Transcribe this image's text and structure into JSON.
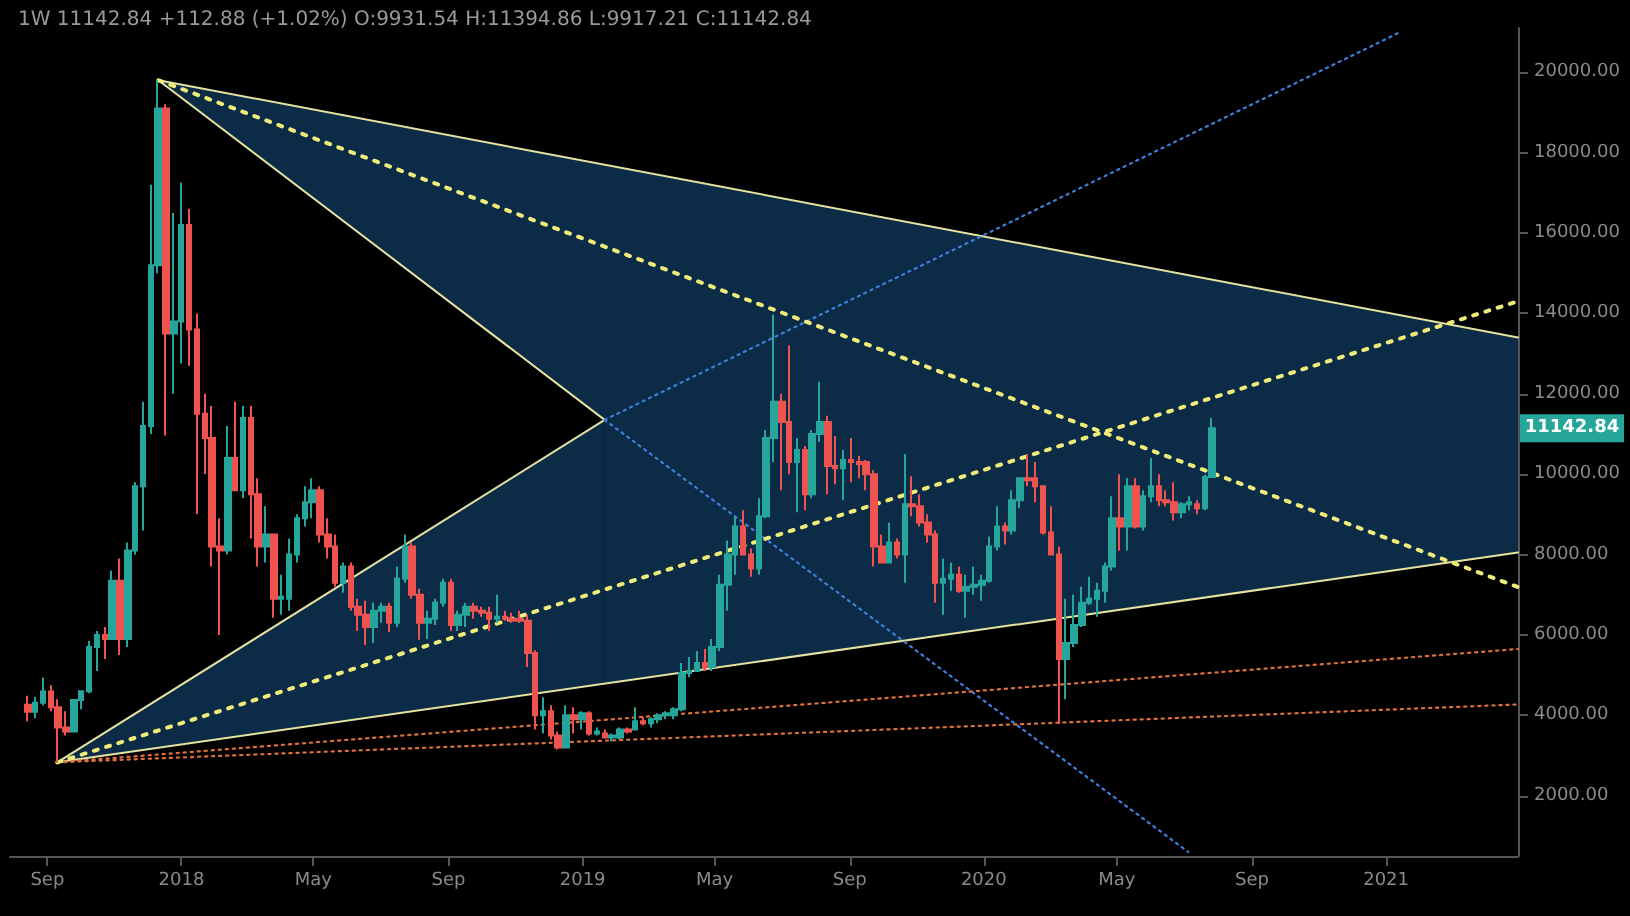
{
  "chart_data": {
    "type": "candlestick",
    "title": "1W 11142.84 +112.88 (+1.02%) O:9931.54 H:11394.86 L:9917.21 C:11142.84",
    "colors": [
      "#ef5350",
      "#26a69a",
      "#26a69a",
      "#ef5350",
      "#ef5350",
      "#ef5350",
      "#26a69a",
      "#26a69a",
      "#26a69a",
      "#26a69a",
      "#ef5350",
      "#26a69a",
      "#ef5350",
      "#26a69a",
      "#26a69a",
      "#26a69a",
      "#26a69a",
      "#26a69a",
      "#ef5350",
      "#26a69a",
      "#26a69a",
      "#ef5350",
      "#ef5350",
      "#ef5350",
      "#ef5350",
      "#ef5350",
      "#26a69a",
      "#ef5350",
      "#26a69a",
      "#ef5350",
      "#ef5350",
      "#26a69a",
      "#ef5350",
      "#26a69a",
      "#26a69a",
      "#26a69a",
      "#26a69a",
      "#26a69a",
      "#ef5350",
      "#ef5350",
      "#ef5350",
      "#26a69a",
      "#ef5350",
      "#ef5350",
      "#ef5350",
      "#26a69a",
      "#26a69a",
      "#ef5350",
      "#26a69a",
      "#26a69a",
      "#ef5350",
      "#ef5350",
      "#26a69a",
      "#26a69a",
      "#26a69a",
      "#ef5350",
      "#26a69a",
      "#26a69a",
      "#ef5350",
      "#ef5350",
      "#ef5350",
      "#26a69a",
      "#ef5350",
      "#ef5350",
      "#ef5350",
      "#ef5350",
      "#ef5350",
      "#26a69a",
      "#ef5350",
      "#ef5350",
      "#26a69a",
      "#ef5350",
      "#26a69a",
      "#ef5350",
      "#26a69a",
      "#ef5350",
      "#26a69a",
      "#26a69a",
      "#ef5350",
      "#26a69a",
      "#ef5350",
      "#26a69a",
      "#26a69a",
      "#26a69a",
      "#26a69a",
      "#26a69a",
      "#26a69a",
      "#26a69a",
      "#ef5350",
      "#26a69a",
      "#26a69a",
      "#26a69a",
      "#26a69a",
      "#ef5350",
      "#ef5350",
      "#26a69a",
      "#26a69a",
      "#26a69a",
      "#ef5350",
      "#ef5350",
      "#26a69a",
      "#ef5350",
      "#26a69a",
      "#26a69a",
      "#ef5350",
      "#ef5350",
      "#26a69a",
      "#ef5350",
      "#ef5350",
      "#ef5350",
      "#ef5350",
      "#ef5350",
      "#26a69a",
      "#ef5350",
      "#26a69a",
      "#ef5350",
      "#ef5350",
      "#ef5350",
      "#ef5350",
      "#26a69a",
      "#26a69a",
      "#ef5350",
      "#26a69a",
      "#26a69a",
      "#26a69a",
      "#26a69a",
      "#26a69a",
      "#ef5350",
      "#26a69a",
      "#26a69a",
      "#ef5350",
      "#ef5350",
      "#ef5350",
      "#ef5350",
      "#ef5350",
      "#26a69a",
      "#26a69a",
      "#26a69a",
      "#26a69a",
      "#26a69a",
      "#26a69a",
      "#26a69a",
      "#ef5350",
      "#26a69a",
      "#ef5350",
      "#26a69a",
      "#26a69a",
      "#ef5350",
      "#ef5350",
      "#ef5350",
      "#26a69a",
      "#26a69a",
      "#ef5350",
      "#26a69a",
      "#26a69a"
    ],
    "grid": false,
    "xlim": [
      "2017-07-29",
      "2021-05-01"
    ],
    "xticks": [
      {
        "value": "2017-09-01",
        "label": "Sep"
      },
      {
        "value": "2018-01-01",
        "label": "2018"
      },
      {
        "value": "2018-05-01",
        "label": "May"
      },
      {
        "value": "2018-09-01",
        "label": "Sep"
      },
      {
        "value": "2019-01-01",
        "label": "2019"
      },
      {
        "value": "2019-05-01",
        "label": "May"
      },
      {
        "value": "2019-09-01",
        "label": "Sep"
      },
      {
        "value": "2020-01-01",
        "label": "2020"
      },
      {
        "value": "2020-05-01",
        "label": "May"
      },
      {
        "value": "2020-09-01",
        "label": "Sep"
      },
      {
        "value": "2021-01-01",
        "label": "2021"
      }
    ],
    "ylim": [
      500,
      21100
    ],
    "yticks": [
      {
        "value": 2000,
        "label": "2000.00"
      },
      {
        "value": 4000,
        "label": "4000.00"
      },
      {
        "value": 6000,
        "label": "6000.00"
      },
      {
        "value": 8000,
        "label": "8000.00"
      },
      {
        "value": 10000,
        "label": "10000.00"
      },
      {
        "value": 12000,
        "label": "12000.00"
      },
      {
        "value": 14000,
        "label": "14000.00"
      },
      {
        "value": 16000,
        "label": "16000.00"
      },
      {
        "value": 18000,
        "label": "18000.00"
      },
      {
        "value": 20000,
        "label": "20000.00"
      }
    ],
    "annotations": [
      "11142.84"
    ],
    "x": [
      "2017-08-14",
      "2017-08-21",
      "2017-08-28",
      "2017-09-04",
      "2017-09-11",
      "2017-09-18",
      "2017-09-25",
      "2017-10-02",
      "2017-10-09",
      "2017-10-16",
      "2017-10-23",
      "2017-10-30",
      "2017-11-06",
      "2017-11-13",
      "2017-11-20",
      "2017-11-27",
      "2017-12-04",
      "2017-12-11",
      "2017-12-18",
      "2017-12-25",
      "2018-01-01",
      "2018-01-08",
      "2018-01-15",
      "2018-01-22",
      "2018-01-29",
      "2018-02-05",
      "2018-02-12",
      "2018-02-19",
      "2018-02-26",
      "2018-03-05",
      "2018-03-12",
      "2018-03-19",
      "2018-03-26",
      "2018-04-02",
      "2018-04-09",
      "2018-04-16",
      "2018-04-23",
      "2018-04-30",
      "2018-05-07",
      "2018-05-14",
      "2018-05-21",
      "2018-05-28",
      "2018-06-04",
      "2018-06-11",
      "2018-06-18",
      "2018-06-25",
      "2018-07-02",
      "2018-07-09",
      "2018-07-16",
      "2018-07-23",
      "2018-07-30",
      "2018-08-06",
      "2018-08-13",
      "2018-08-20",
      "2018-08-27",
      "2018-09-03",
      "2018-09-10",
      "2018-09-17",
      "2018-09-24",
      "2018-10-01",
      "2018-10-08",
      "2018-10-15",
      "2018-10-22",
      "2018-10-29",
      "2018-11-05",
      "2018-11-12",
      "2018-11-19",
      "2018-11-26",
      "2018-12-03",
      "2018-12-10",
      "2018-12-17",
      "2018-12-24",
      "2018-12-31",
      "2019-01-07",
      "2019-01-14",
      "2019-01-21",
      "2019-01-28",
      "2019-02-04",
      "2019-02-11",
      "2019-02-18",
      "2019-02-25",
      "2019-03-04",
      "2019-03-11",
      "2019-03-18",
      "2019-03-25",
      "2019-04-01",
      "2019-04-08",
      "2019-04-15",
      "2019-04-22",
      "2019-04-29",
      "2019-05-06",
      "2019-05-13",
      "2019-05-20",
      "2019-05-27",
      "2019-06-03",
      "2019-06-10",
      "2019-06-17",
      "2019-06-24",
      "2019-07-01",
      "2019-07-08",
      "2019-07-15",
      "2019-07-22",
      "2019-07-29",
      "2019-08-05",
      "2019-08-12",
      "2019-08-19",
      "2019-08-26",
      "2019-09-02",
      "2019-09-09",
      "2019-09-16",
      "2019-09-23",
      "2019-09-30",
      "2019-10-07",
      "2019-10-14",
      "2019-10-21",
      "2019-10-28",
      "2019-11-04",
      "2019-11-11",
      "2019-11-18",
      "2019-11-25",
      "2019-12-02",
      "2019-12-09",
      "2019-12-16",
      "2019-12-23",
      "2019-12-30",
      "2020-01-06",
      "2020-01-13",
      "2020-01-20",
      "2020-01-27",
      "2020-02-03",
      "2020-02-10",
      "2020-02-17",
      "2020-02-24",
      "2020-03-02",
      "2020-03-09",
      "2020-03-16",
      "2020-03-23",
      "2020-03-30",
      "2020-04-06",
      "2020-04-13",
      "2020-04-20",
      "2020-04-27",
      "2020-05-04",
      "2020-05-11",
      "2020-05-18",
      "2020-05-25",
      "2020-06-01",
      "2020-06-08",
      "2020-06-15",
      "2020-06-22",
      "2020-06-29",
      "2020-07-06",
      "2020-07-13",
      "2020-07-20",
      "2020-07-27"
    ],
    "ohlc": [
      [
        4261,
        4485,
        3850,
        4086
      ],
      [
        4086,
        4453,
        3930,
        4310
      ],
      [
        4310,
        4939,
        4250,
        4590
      ],
      [
        4590,
        4750,
        4100,
        4200
      ],
      [
        4200,
        4400,
        2817,
        3700
      ],
      [
        3700,
        4100,
        3500,
        3600
      ],
      [
        3600,
        4400,
        3600,
        4380
      ],
      [
        4380,
        4600,
        4150,
        4600
      ],
      [
        4600,
        5850,
        4550,
        5700
      ],
      [
        5700,
        6100,
        5100,
        6000
      ],
      [
        6000,
        6200,
        5400,
        5900
      ],
      [
        5900,
        7600,
        5900,
        7350
      ],
      [
        7350,
        7900,
        5500,
        5900
      ],
      [
        5900,
        8300,
        5700,
        8100
      ],
      [
        8100,
        9800,
        8000,
        9700
      ],
      [
        9700,
        11800,
        8600,
        11200
      ],
      [
        11200,
        17200,
        11000,
        15200
      ],
      [
        15200,
        19798,
        15000,
        19100
      ],
      [
        19100,
        19200,
        10960,
        13500
      ],
      [
        13500,
        16500,
        12000,
        13800
      ],
      [
        13800,
        17250,
        12750,
        16200
      ],
      [
        16200,
        16600,
        12700,
        13600
      ],
      [
        13600,
        14000,
        9000,
        11500
      ],
      [
        11500,
        12000,
        10000,
        10900
      ],
      [
        10900,
        11700,
        7700,
        8200
      ],
      [
        8200,
        8900,
        6000,
        8100
      ],
      [
        8100,
        11200,
        8000,
        10400
      ],
      [
        10400,
        11800,
        9600,
        9600
      ],
      [
        9600,
        11700,
        9400,
        11400
      ],
      [
        11400,
        11700,
        8400,
        9500
      ],
      [
        9500,
        9900,
        7700,
        8200
      ],
      [
        8200,
        9200,
        7800,
        8500
      ],
      [
        8500,
        8500,
        6430,
        6900
      ],
      [
        6900,
        7500,
        6500,
        6950
      ],
      [
        6900,
        8400,
        6600,
        8000
      ],
      [
        8000,
        9000,
        7800,
        8900
      ],
      [
        8900,
        9700,
        8700,
        9300
      ],
      [
        9300,
        9900,
        8900,
        9600
      ],
      [
        9600,
        9700,
        8300,
        8500
      ],
      [
        8500,
        8900,
        7900,
        8200
      ],
      [
        8200,
        8500,
        7200,
        7300
      ],
      [
        7300,
        7800,
        7050,
        7700
      ],
      [
        7700,
        7800,
        6600,
        6700
      ],
      [
        6700,
        6900,
        6100,
        6500
      ],
      [
        6500,
        6850,
        5750,
        6200
      ],
      [
        6200,
        6800,
        5800,
        6600
      ],
      [
        6600,
        6800,
        6300,
        6700
      ],
      [
        6700,
        6800,
        6070,
        6300
      ],
      [
        6300,
        7700,
        6200,
        7400
      ],
      [
        7400,
        8500,
        7300,
        8200
      ],
      [
        8200,
        8300,
        6900,
        7000
      ],
      [
        7000,
        7150,
        5880,
        6300
      ],
      [
        6300,
        6600,
        5900,
        6400
      ],
      [
        6400,
        6900,
        6250,
        6800
      ],
      [
        6800,
        7400,
        6700,
        7300
      ],
      [
        7300,
        7400,
        6100,
        6250
      ],
      [
        6250,
        6600,
        6100,
        6500
      ],
      [
        6500,
        6800,
        6200,
        6700
      ],
      [
        6700,
        6800,
        6400,
        6600
      ],
      [
        6600,
        6700,
        6450,
        6550
      ],
      [
        6550,
        6700,
        6100,
        6400
      ],
      [
        6400,
        7000,
        6300,
        6450
      ],
      [
        6450,
        6600,
        6350,
        6400
      ],
      [
        6400,
        6550,
        6300,
        6350
      ],
      [
        6400,
        6600,
        6300,
        6350
      ],
      [
        6350,
        6500,
        5200,
        5550
      ],
      [
        5550,
        5620,
        3650,
        4000
      ],
      [
        4000,
        4450,
        3550,
        4100
      ],
      [
        4100,
        4250,
        3400,
        3500
      ],
      [
        3500,
        3600,
        3150,
        3200
      ],
      [
        3200,
        4250,
        3200,
        4000
      ],
      [
        4000,
        4200,
        3550,
        3900
      ],
      [
        3900,
        4100,
        3650,
        4050
      ],
      [
        4050,
        4100,
        3500,
        3550
      ],
      [
        3550,
        3700,
        3500,
        3600
      ],
      [
        3550,
        3650,
        3450,
        3450
      ],
      [
        3450,
        3550,
        3350,
        3500
      ],
      [
        3450,
        3700,
        3400,
        3650
      ],
      [
        3650,
        3700,
        3550,
        3600
      ],
      [
        3650,
        4200,
        3650,
        3850
      ],
      [
        3850,
        3950,
        3750,
        3800
      ],
      [
        3800,
        3950,
        3700,
        3900
      ],
      [
        3900,
        4050,
        3800,
        4000
      ],
      [
        4000,
        4100,
        3900,
        4050
      ],
      [
        4000,
        4200,
        3900,
        4150
      ],
      [
        4150,
        5300,
        4100,
        5050
      ],
      [
        5050,
        5450,
        4950,
        5100
      ],
      [
        5100,
        5600,
        5100,
        5300
      ],
      [
        5300,
        5650,
        5100,
        5200
      ],
      [
        5200,
        5900,
        5100,
        5700
      ],
      [
        5700,
        7500,
        5600,
        7250
      ],
      [
        7250,
        8350,
        6600,
        8000
      ],
      [
        8000,
        8950,
        7500,
        8700
      ],
      [
        8700,
        9100,
        8000,
        8000
      ],
      [
        8000,
        8150,
        7450,
        7650
      ],
      [
        7650,
        9400,
        7500,
        8950
      ],
      [
        8950,
        11100,
        8900,
        10900
      ],
      [
        10900,
        13970,
        10300,
        11800
      ],
      [
        11800,
        12000,
        9600,
        11300
      ],
      [
        11300,
        13200,
        10000,
        10300
      ],
      [
        10300,
        10900,
        9050,
        10600
      ],
      [
        10600,
        10700,
        9100,
        9500
      ],
      [
        9500,
        11100,
        9400,
        11000
      ],
      [
        11000,
        12300,
        10800,
        11300
      ],
      [
        11300,
        11450,
        9500,
        10200
      ],
      [
        10200,
        10950,
        9750,
        10150
      ],
      [
        10150,
        10600,
        9350,
        10350
      ],
      [
        10350,
        10900,
        9800,
        10300
      ],
      [
        10300,
        10450,
        9900,
        10250
      ],
      [
        10300,
        10350,
        9600,
        10000
      ],
      [
        10000,
        10100,
        7700,
        8200
      ],
      [
        8200,
        8500,
        7800,
        7800
      ],
      [
        7800,
        8800,
        7800,
        8300
      ],
      [
        8300,
        8400,
        7900,
        8000
      ],
      [
        8000,
        10500,
        7300,
        9250
      ],
      [
        9250,
        9950,
        8950,
        9200
      ],
      [
        9200,
        9500,
        8700,
        8800
      ],
      [
        8800,
        9000,
        8300,
        8500
      ],
      [
        8500,
        8600,
        6800,
        7300
      ],
      [
        7300,
        7900,
        6500,
        7400
      ],
      [
        7400,
        7800,
        7100,
        7500
      ],
      [
        7500,
        7700,
        7050,
        7100
      ],
      [
        7100,
        7500,
        6430,
        7200
      ],
      [
        7200,
        7700,
        7000,
        7250
      ],
      [
        7250,
        7500,
        6850,
        7350
      ],
      [
        7350,
        8450,
        7300,
        8200
      ],
      [
        8200,
        9200,
        8100,
        8700
      ],
      [
        8700,
        8800,
        8250,
        8600
      ],
      [
        8600,
        9600,
        8500,
        9350
      ],
      [
        9350,
        9900,
        9150,
        9900
      ],
      [
        9900,
        10500,
        9700,
        9850
      ],
      [
        9900,
        10300,
        9300,
        9700
      ],
      [
        9700,
        9700,
        8500,
        8550
      ],
      [
        8550,
        9200,
        8000,
        8000
      ],
      [
        8000,
        8200,
        3782,
        5400
      ],
      [
        5400,
        6900,
        4400,
        5800
      ],
      [
        5800,
        7000,
        5700,
        6250
      ],
      [
        6250,
        7200,
        6200,
        6800
      ],
      [
        6800,
        7450,
        6750,
        6900
      ],
      [
        6900,
        7300,
        6450,
        7100
      ],
      [
        7100,
        7800,
        6800,
        7700
      ],
      [
        7700,
        9450,
        7600,
        8900
      ],
      [
        8900,
        10000,
        8100,
        8700
      ],
      [
        8700,
        9900,
        8100,
        9700
      ],
      [
        9700,
        9900,
        8650,
        8700
      ],
      [
        8700,
        9600,
        8600,
        9450
      ],
      [
        9450,
        10400,
        9300,
        9700
      ],
      [
        9700,
        10000,
        9200,
        9350
      ],
      [
        9350,
        9600,
        9200,
        9300
      ],
      [
        9300,
        9800,
        8850,
        9050
      ],
      [
        9050,
        9300,
        8900,
        9250
      ],
      [
        9250,
        9450,
        9100,
        9300
      ],
      [
        9250,
        9350,
        9000,
        9150
      ],
      [
        9150,
        9990,
        9100,
        9931.54
      ],
      [
        9931.54,
        11394.86,
        9917.21,
        11142.84
      ]
    ],
    "series": [
      {
        "type": "area",
        "color": "#0c2b47",
        "x": [
          "2017-09-10",
          "2019-01-21"
        ],
        "values": [
          null,
          null
        ],
        "lower": [
          2830,
          4800
        ],
        "upper": [
          2830,
          11350
        ]
      },
      {
        "type": "area",
        "color": "#0c2b47",
        "x": [
          "2017-12-11",
          "2019-01-21",
          "2019-01-21",
          "2021-05-01"
        ],
        "values": [
          null,
          null,
          null,
          null
        ],
        "lower": [
          19800,
          11350,
          4800,
          8050
        ],
        "upper": [
          19800,
          17700,
          17700,
          13400
        ]
      },
      {
        "type": "line",
        "color": "#e6e3a0",
        "line_style": "solid",
        "x": [
          "2017-12-11",
          "2021-05-01"
        ],
        "values": [
          19800,
          13400
        ]
      },
      {
        "type": "line",
        "color": "#e6e3a0",
        "line_style": "solid",
        "x": [
          "2017-09-10",
          "2021-05-01"
        ],
        "values": [
          2830,
          8050
        ]
      },
      {
        "type": "line",
        "color": "#e6e3a0",
        "line_style": "solid",
        "x": [
          "2017-12-11",
          "2019-01-21"
        ],
        "values": [
          19800,
          11350
        ]
      },
      {
        "type": "line",
        "color": "#e6e3a0",
        "line_style": "solid",
        "x": [
          "2017-09-10",
          "2019-01-21"
        ],
        "values": [
          2830,
          11350
        ]
      },
      {
        "type": "line",
        "color": "#3d7fd9",
        "line_style": "dotted",
        "x": [
          "2019-01-21",
          "2021-01-14"
        ],
        "values": [
          11350,
          21000
        ]
      },
      {
        "type": "line",
        "color": "#3d7fd9",
        "line_style": "dotted",
        "x": [
          "2019-01-21",
          "2020-07-05"
        ],
        "values": [
          11350,
          600
        ]
      },
      {
        "type": "line",
        "color": "#e0703a",
        "line_style": "dotted",
        "x": [
          "2017-09-10",
          "2021-05-01"
        ],
        "values": [
          2830,
          5650
        ]
      },
      {
        "type": "line",
        "color": "#e0703a",
        "line_style": "dotted",
        "x": [
          "2017-09-10",
          "2021-05-01"
        ],
        "values": [
          2830,
          4270
        ]
      },
      {
        "type": "line",
        "color": "#f0ec7a",
        "line_style": "dotted",
        "x": [
          "2017-12-11",
          "2021-05-01"
        ],
        "values": [
          19800,
          7190
        ]
      },
      {
        "type": "line",
        "color": "#f0ec7a",
        "line_style": "dotted",
        "x": [
          "2017-09-10",
          "2021-05-01"
        ],
        "values": [
          2830,
          14300
        ]
      }
    ]
  }
}
